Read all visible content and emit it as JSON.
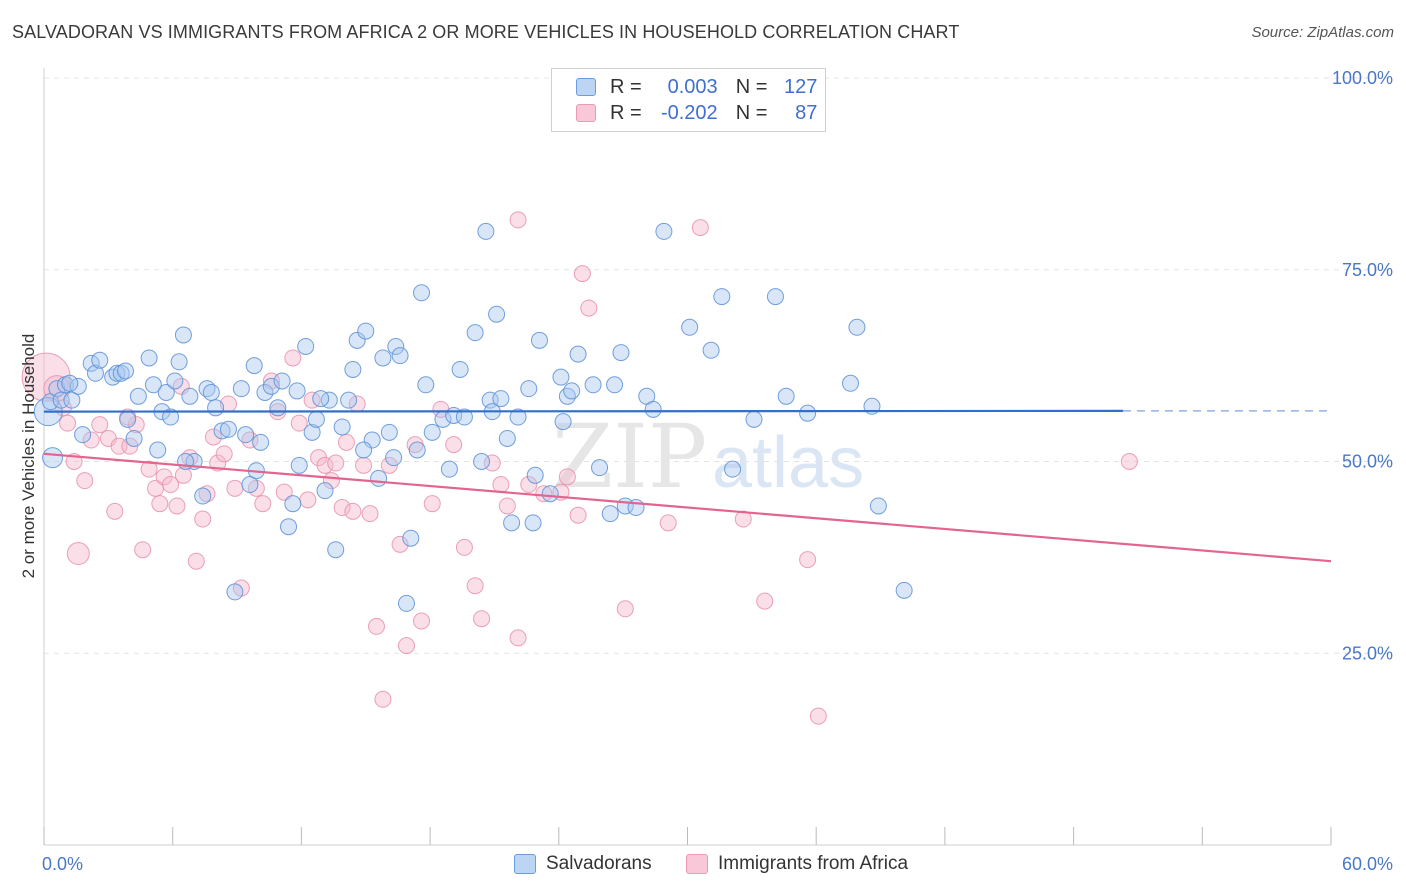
{
  "header": {
    "title": "SALVADORAN VS IMMIGRANTS FROM AFRICA 2 OR MORE VEHICLES IN HOUSEHOLD CORRELATION CHART",
    "source": "Source: ZipAtlas.com"
  },
  "legend": {
    "rows": [
      {
        "r_label": "R =",
        "r_value": "0.003",
        "n_label": "N =",
        "n_value": "127"
      },
      {
        "r_label": "R =",
        "r_value": "-0.202",
        "n_label": "N =",
        "n_value": "87"
      }
    ]
  },
  "watermark": {
    "zip": "ZIP",
    "atlas": "atlas"
  },
  "colors": {
    "salvadorans_fill": "#a8c8f0",
    "salvadorans_stroke": "#5b8fd6",
    "salvadorans_line": "#3070cc",
    "africa_fill": "#f5b8cc",
    "africa_stroke": "#e890aa",
    "africa_line": "#e06690",
    "tick_label": "#4a78c8",
    "grid": "#e3e3e3"
  },
  "chart_data": {
    "type": "scatter",
    "title": "SALVADORAN VS IMMIGRANTS FROM AFRICA 2 OR MORE VEHICLES IN HOUSEHOLD CORRELATION CHART",
    "xlabel": "",
    "ylabel": "2 or more Vehicles in Household",
    "xlim": [
      0,
      60
    ],
    "ylim": [
      0,
      100
    ],
    "x_tick_labels": [
      "0.0%",
      "60.0%"
    ],
    "y_ticks": [
      25,
      50,
      75,
      100
    ],
    "y_tick_labels": [
      "25.0%",
      "50.0%",
      "75.0%",
      "100.0%"
    ],
    "grid": true,
    "legend_position": "top-center",
    "series": [
      {
        "name": "Salvadorans",
        "r": 0.003,
        "n": 127,
        "trend": {
          "x": [
            0,
            50.3
          ],
          "y": [
            56.5,
            56.6
          ],
          "dashed_to": [
            50.3,
            60
          ],
          "dashed_y": [
            56.6,
            56.6
          ]
        },
        "points": [
          [
            0.2,
            56.5
          ],
          [
            0.3,
            57.8
          ],
          [
            0.4,
            50.5
          ],
          [
            0.6,
            59.5
          ],
          [
            0.8,
            58
          ],
          [
            1,
            60
          ],
          [
            1.3,
            58
          ],
          [
            1.6,
            59.8
          ],
          [
            1.8,
            53.5
          ],
          [
            2.2,
            62.8
          ],
          [
            2.4,
            61.5
          ],
          [
            2.6,
            63.2
          ],
          [
            3.2,
            61
          ],
          [
            3.4,
            61.5
          ],
          [
            3.6,
            61.5
          ],
          [
            3.9,
            55.5
          ],
          [
            4.2,
            53
          ],
          [
            4.4,
            58.5
          ],
          [
            4.9,
            63.5
          ],
          [
            5.1,
            60
          ],
          [
            5.5,
            56.5
          ],
          [
            5.7,
            59
          ],
          [
            5.9,
            55.8
          ],
          [
            6.1,
            60.5
          ],
          [
            6.3,
            63
          ],
          [
            6.5,
            66.5
          ],
          [
            6.8,
            58.5
          ],
          [
            7,
            50
          ],
          [
            7.4,
            45.5
          ],
          [
            7.6,
            59.5
          ],
          [
            7.8,
            59
          ],
          [
            8,
            57
          ],
          [
            8.3,
            54
          ],
          [
            8.6,
            54.2
          ],
          [
            8.9,
            33
          ],
          [
            9.2,
            59.5
          ],
          [
            9.4,
            53.5
          ],
          [
            9.6,
            47
          ],
          [
            9.8,
            62.5
          ],
          [
            10.1,
            52.5
          ],
          [
            10.3,
            59
          ],
          [
            10.6,
            59.8
          ],
          [
            10.9,
            57
          ],
          [
            11.1,
            60.5
          ],
          [
            11.4,
            41.5
          ],
          [
            11.6,
            44.5
          ],
          [
            11.9,
            49.5
          ],
          [
            12.2,
            65
          ],
          [
            12.5,
            53.8
          ],
          [
            12.7,
            55.5
          ],
          [
            13.1,
            46.2
          ],
          [
            13.3,
            58
          ],
          [
            13.6,
            38.5
          ],
          [
            13.9,
            54.5
          ],
          [
            14.2,
            58
          ],
          [
            14.4,
            62
          ],
          [
            14.6,
            65.8
          ],
          [
            15,
            67
          ],
          [
            15.3,
            52.8
          ],
          [
            15.6,
            47.8
          ],
          [
            15.8,
            63.5
          ],
          [
            16.1,
            53.8
          ],
          [
            16.4,
            65
          ],
          [
            16.6,
            63.8
          ],
          [
            16.9,
            31.5
          ],
          [
            17.1,
            40
          ],
          [
            17.4,
            51.5
          ],
          [
            17.6,
            72
          ],
          [
            17.8,
            60
          ],
          [
            18.1,
            53.8
          ],
          [
            18.6,
            55.5
          ],
          [
            19.1,
            56
          ],
          [
            19.4,
            62
          ],
          [
            19.6,
            55.8
          ],
          [
            20.1,
            66.8
          ],
          [
            20.4,
            50
          ],
          [
            20.6,
            80
          ],
          [
            20.8,
            58
          ],
          [
            21.1,
            69.2
          ],
          [
            21.3,
            58.2
          ],
          [
            21.6,
            53
          ],
          [
            21.8,
            42
          ],
          [
            22.1,
            55.8
          ],
          [
            22.6,
            59.5
          ],
          [
            22.8,
            42
          ],
          [
            23.1,
            65.8
          ],
          [
            22.9,
            48.2
          ],
          [
            23.6,
            45.8
          ],
          [
            24.1,
            61
          ],
          [
            24.4,
            58.5
          ],
          [
            24.6,
            59.2
          ],
          [
            24.9,
            64
          ],
          [
            25.6,
            60
          ],
          [
            25.9,
            49.2
          ],
          [
            26.4,
            43.2
          ],
          [
            26.6,
            60
          ],
          [
            26.9,
            64.2
          ],
          [
            27.1,
            44.2
          ],
          [
            27.6,
            44
          ],
          [
            28.1,
            58.5
          ],
          [
            28.4,
            56.8
          ],
          [
            28.9,
            80
          ],
          [
            30.1,
            67.5
          ],
          [
            31.1,
            64.5
          ],
          [
            31.6,
            71.5
          ],
          [
            32.1,
            49
          ],
          [
            33.1,
            55.5
          ],
          [
            34.1,
            71.5
          ],
          [
            34.6,
            58.5
          ],
          [
            35.6,
            56.3
          ],
          [
            37.6,
            60.2
          ],
          [
            37.9,
            67.5
          ],
          [
            38.9,
            44.2
          ],
          [
            38.6,
            57.2
          ],
          [
            40.1,
            33.2
          ],
          [
            1.2,
            60.2
          ],
          [
            3.8,
            61.8
          ],
          [
            5.3,
            51.5
          ],
          [
            6.6,
            50
          ],
          [
            9.9,
            48.8
          ],
          [
            11.8,
            59.2
          ],
          [
            12.9,
            58.2
          ],
          [
            14.9,
            51.5
          ],
          [
            16.3,
            50.5
          ],
          [
            18.9,
            49
          ],
          [
            20.9,
            56.5
          ],
          [
            24.2,
            55.2
          ]
        ],
        "radius_overrides": {
          "0": 14,
          "2": 10
        }
      },
      {
        "name": "Immigrants from Africa",
        "r": -0.202,
        "n": 87,
        "trend": {
          "x": [
            0,
            60
          ],
          "y": [
            51,
            37
          ]
        },
        "points": [
          [
            0.1,
            61
          ],
          [
            0.6,
            59.5
          ],
          [
            0.9,
            57
          ],
          [
            1.1,
            55
          ],
          [
            1.4,
            50
          ],
          [
            1.6,
            38
          ],
          [
            1.9,
            47.5
          ],
          [
            2.2,
            52.8
          ],
          [
            2.6,
            54.8
          ],
          [
            3,
            53
          ],
          [
            3.3,
            43.5
          ],
          [
            3.5,
            52
          ],
          [
            4,
            52
          ],
          [
            4.3,
            54.8
          ],
          [
            4.6,
            38.5
          ],
          [
            4.9,
            49
          ],
          [
            5.2,
            46.5
          ],
          [
            5.4,
            44.5
          ],
          [
            5.6,
            48
          ],
          [
            5.9,
            47
          ],
          [
            6.2,
            44.2
          ],
          [
            6.5,
            48.2
          ],
          [
            6.8,
            50.5
          ],
          [
            7.1,
            37
          ],
          [
            7.4,
            42.5
          ],
          [
            7.6,
            45.8
          ],
          [
            7.9,
            53.2
          ],
          [
            8.1,
            49.8
          ],
          [
            8.4,
            51
          ],
          [
            8.6,
            57.5
          ],
          [
            8.9,
            46.5
          ],
          [
            9.2,
            33.5
          ],
          [
            9.6,
            52.8
          ],
          [
            9.9,
            46.5
          ],
          [
            10.2,
            44.5
          ],
          [
            10.6,
            60.5
          ],
          [
            10.9,
            56.5
          ],
          [
            11.2,
            46
          ],
          [
            11.6,
            63.5
          ],
          [
            11.9,
            55
          ],
          [
            12.3,
            45
          ],
          [
            12.5,
            58
          ],
          [
            12.8,
            50.5
          ],
          [
            13.1,
            49.5
          ],
          [
            13.4,
            47.5
          ],
          [
            13.6,
            49.8
          ],
          [
            13.9,
            44
          ],
          [
            14.1,
            52.5
          ],
          [
            14.4,
            43.5
          ],
          [
            14.6,
            57.5
          ],
          [
            14.9,
            49.5
          ],
          [
            15.2,
            43.2
          ],
          [
            15.5,
            28.5
          ],
          [
            15.8,
            19
          ],
          [
            16.1,
            49.5
          ],
          [
            16.6,
            39.2
          ],
          [
            16.9,
            26
          ],
          [
            17.3,
            52.2
          ],
          [
            17.6,
            29.2
          ],
          [
            18.1,
            44.5
          ],
          [
            18.5,
            56.8
          ],
          [
            19.1,
            52.2
          ],
          [
            19.6,
            38.8
          ],
          [
            20.1,
            33.8
          ],
          [
            20.4,
            29.5
          ],
          [
            20.9,
            49.8
          ],
          [
            21.3,
            47
          ],
          [
            21.6,
            44.2
          ],
          [
            22.1,
            27
          ],
          [
            22.6,
            47
          ],
          [
            23.3,
            45.8
          ],
          [
            24.1,
            46
          ],
          [
            24.4,
            48
          ],
          [
            24.9,
            43
          ],
          [
            25.1,
            74.5
          ],
          [
            25.4,
            70
          ],
          [
            27.1,
            30.8
          ],
          [
            29.1,
            42
          ],
          [
            30.6,
            80.5
          ],
          [
            32.6,
            42.5
          ],
          [
            33.6,
            31.8
          ],
          [
            35.6,
            37.2
          ],
          [
            36.1,
            16.8
          ],
          [
            50.6,
            50
          ],
          [
            22.1,
            81.5
          ],
          [
            3.9,
            55.8
          ],
          [
            6.4,
            59.8
          ]
        ],
        "radius_overrides": {
          "0": 24,
          "1": 13,
          "5": 11
        }
      }
    ]
  },
  "bottom_legend": {
    "items": [
      {
        "label": "Salvadorans"
      },
      {
        "label": "Immigrants from Africa"
      }
    ]
  }
}
